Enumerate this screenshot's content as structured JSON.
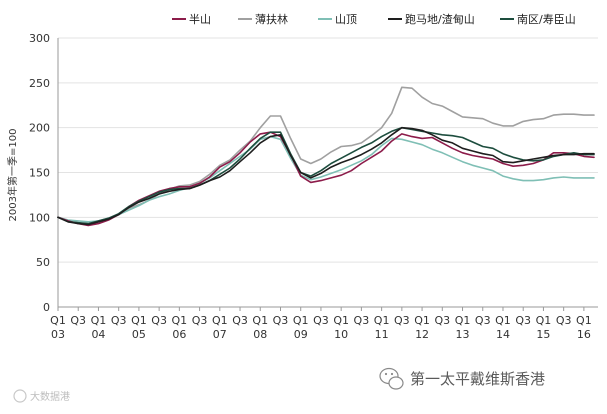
{
  "chart_data": {
    "type": "line",
    "title": "",
    "xlabel": "",
    "ylabel": "2003年第一季=100",
    "ylim": [
      0,
      300
    ],
    "yticks": [
      0,
      50,
      100,
      150,
      200,
      250,
      300
    ],
    "grid": "horizontal",
    "legend_position": "top",
    "x_tick_labels": [
      {
        "index": 0,
        "quarter": "Q1",
        "year": "03"
      },
      {
        "index": 2,
        "quarter": "Q3",
        "year": ""
      },
      {
        "index": 4,
        "quarter": "Q1",
        "year": "04"
      },
      {
        "index": 6,
        "quarter": "Q3",
        "year": ""
      },
      {
        "index": 8,
        "quarter": "Q1",
        "year": "05"
      },
      {
        "index": 10,
        "quarter": "Q3",
        "year": ""
      },
      {
        "index": 12,
        "quarter": "Q1",
        "year": "06"
      },
      {
        "index": 14,
        "quarter": "Q3",
        "year": ""
      },
      {
        "index": 16,
        "quarter": "Q1",
        "year": "07"
      },
      {
        "index": 18,
        "quarter": "Q3",
        "year": ""
      },
      {
        "index": 20,
        "quarter": "Q1",
        "year": "08"
      },
      {
        "index": 22,
        "quarter": "Q3",
        "year": ""
      },
      {
        "index": 24,
        "quarter": "Q1",
        "year": "09"
      },
      {
        "index": 26,
        "quarter": "Q3",
        "year": ""
      },
      {
        "index": 28,
        "quarter": "Q1",
        "year": "10"
      },
      {
        "index": 30,
        "quarter": "Q3",
        "year": ""
      },
      {
        "index": 32,
        "quarter": "Q1",
        "year": "11"
      },
      {
        "index": 34,
        "quarter": "Q3",
        "year": ""
      },
      {
        "index": 36,
        "quarter": "Q1",
        "year": "12"
      },
      {
        "index": 38,
        "quarter": "Q3",
        "year": ""
      },
      {
        "index": 40,
        "quarter": "Q1",
        "year": "13"
      },
      {
        "index": 42,
        "quarter": "Q3",
        "year": ""
      },
      {
        "index": 44,
        "quarter": "Q1",
        "year": "14"
      },
      {
        "index": 46,
        "quarter": "Q3",
        "year": ""
      },
      {
        "index": 48,
        "quarter": "Q1",
        "year": "15"
      },
      {
        "index": 50,
        "quarter": "Q3",
        "year": ""
      },
      {
        "index": 52,
        "quarter": "Q1",
        "year": "16"
      }
    ],
    "x_count": 54,
    "series": [
      {
        "name": "半山",
        "color": "#8c1c4a",
        "values": [
          100,
          96,
          93,
          91,
          93,
          97,
          103,
          112,
          119,
          124,
          129,
          132,
          134,
          134,
          138,
          145,
          156,
          162,
          172,
          184,
          193,
          195,
          190,
          170,
          146,
          139,
          141,
          144,
          147,
          152,
          160,
          167,
          174,
          185,
          193,
          190,
          188,
          189,
          183,
          177,
          172,
          169,
          167,
          165,
          160,
          157,
          158,
          160,
          164,
          172,
          172,
          171,
          168,
          167
        ]
      },
      {
        "name": "薄扶林",
        "color": "#a0a0a0",
        "values": [
          100,
          96,
          94,
          92,
          95,
          98,
          103,
          110,
          114,
          119,
          126,
          131,
          135,
          136,
          140,
          148,
          158,
          164,
          175,
          185,
          200,
          213,
          213,
          188,
          165,
          160,
          165,
          173,
          179,
          180,
          183,
          191,
          200,
          216,
          245,
          244,
          234,
          227,
          224,
          218,
          212,
          211,
          210,
          205,
          202,
          202,
          207,
          209,
          210,
          214,
          215,
          215,
          214,
          214
        ]
      },
      {
        "name": "山顶",
        "color": "#7fbfb5",
        "values": [
          100,
          97,
          96,
          95,
          96,
          99,
          103,
          108,
          113,
          119,
          123,
          126,
          130,
          133,
          138,
          144,
          152,
          160,
          168,
          176,
          187,
          190,
          187,
          166,
          147,
          142,
          145,
          149,
          153,
          158,
          163,
          170,
          180,
          188,
          187,
          184,
          181,
          176,
          172,
          167,
          162,
          158,
          155,
          152,
          146,
          143,
          141,
          141,
          142,
          144,
          145,
          144,
          144,
          144
        ]
      },
      {
        "name": "跑马地/渣甸山",
        "color": "#1e1e1e",
        "values": [
          100,
          95,
          93,
          92,
          95,
          98,
          103,
          111,
          117,
          121,
          126,
          129,
          131,
          132,
          136,
          141,
          145,
          152,
          162,
          172,
          183,
          190,
          192,
          169,
          150,
          144,
          149,
          156,
          161,
          165,
          170,
          176,
          183,
          192,
          200,
          199,
          197,
          192,
          186,
          183,
          177,
          174,
          171,
          169,
          162,
          161,
          163,
          165,
          167,
          169,
          170,
          170,
          171,
          171
        ]
      },
      {
        "name": "南区/寿臣山",
        "color": "#1d4d3e",
        "values": [
          100,
          95,
          94,
          93,
          96,
          99,
          104,
          112,
          118,
          123,
          128,
          131,
          132,
          132,
          136,
          141,
          148,
          155,
          165,
          177,
          188,
          195,
          195,
          171,
          150,
          146,
          152,
          160,
          166,
          172,
          178,
          183,
          190,
          196,
          200,
          198,
          196,
          194,
          192,
          191,
          189,
          184,
          179,
          177,
          171,
          167,
          164,
          163,
          164,
          168,
          170,
          172,
          170,
          170
        ]
      }
    ]
  },
  "watermarks": {
    "bottom_left": "大数据港",
    "bottom_right": "第一太平戴维斯香港"
  }
}
